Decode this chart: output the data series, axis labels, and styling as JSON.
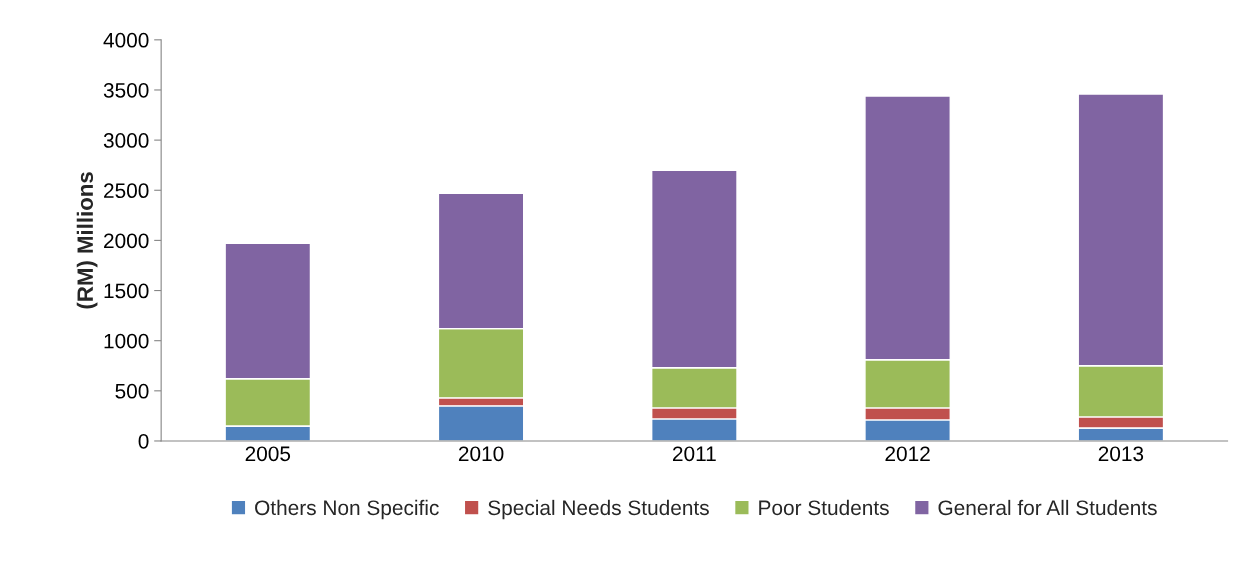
{
  "chart_data": {
    "type": "bar",
    "stacked": true,
    "ylabel": "(RM) Millions",
    "categories": [
      "2005",
      "2010",
      "2011",
      "2012",
      "2013"
    ],
    "series": [
      {
        "name": "Others Non Specific",
        "color": "#4f81bd",
        "values": [
          150,
          350,
          220,
          210,
          130
        ]
      },
      {
        "name": "Special Needs Students",
        "color": "#c0504d",
        "values": [
          0,
          80,
          110,
          120,
          110
        ]
      },
      {
        "name": "Poor Students",
        "color": "#9bbb59",
        "values": [
          470,
          690,
          400,
          480,
          510
        ]
      },
      {
        "name": "General for All Students",
        "color": "#8064a2",
        "values": [
          1350,
          1350,
          1970,
          2630,
          2710
        ]
      }
    ],
    "ylim": [
      0,
      4000
    ],
    "yticks": [
      0,
      500,
      1000,
      1500,
      2000,
      2500,
      3000,
      3500,
      4000
    ],
    "grid": false,
    "legend": "bottom"
  }
}
